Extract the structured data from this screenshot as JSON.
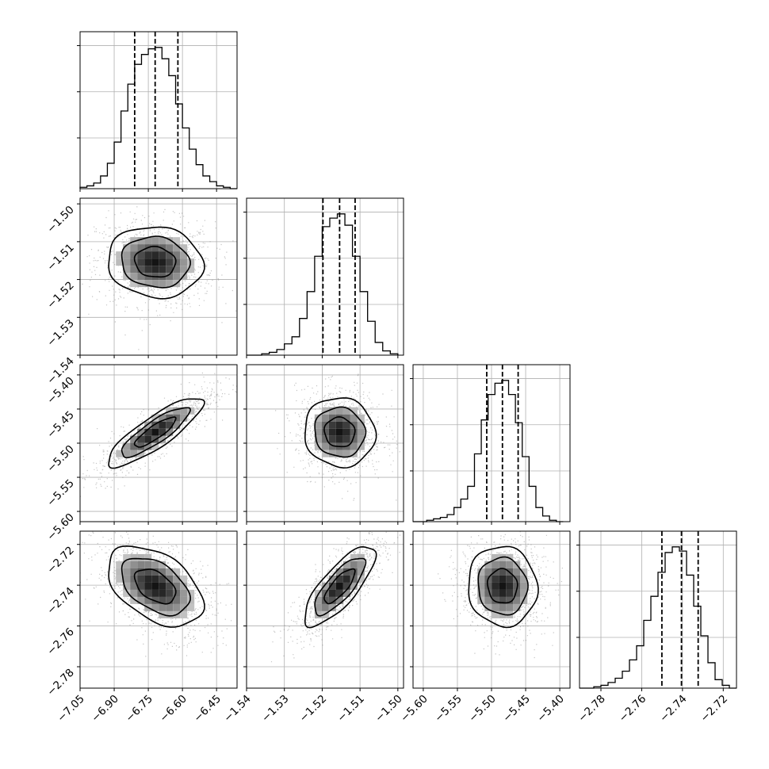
{
  "chart_data": {
    "type": "corner",
    "colors": {
      "frame": "#000000",
      "grid": "#b0b0b0",
      "hist": "#000000",
      "scatter": "#7f7f7f",
      "quantile_line": "#000000"
    },
    "grid": true,
    "parameters": [
      {
        "ticks": [
          "−7.05",
          "−6.90",
          "−6.75",
          "−6.60",
          "−6.45"
        ],
        "tick_values": [
          -7.05,
          -6.9,
          -6.75,
          -6.6,
          -6.45
        ],
        "range": [
          -7.05,
          -6.36
        ],
        "quantiles": [
          -6.81,
          -6.72,
          -6.62
        ],
        "hist_bins": [
          -7.05,
          -7.02,
          -6.99,
          -6.96,
          -6.93,
          -6.9,
          -6.87,
          -6.84,
          -6.81,
          -6.78,
          -6.75,
          -6.72,
          -6.69,
          -6.66,
          -6.63,
          -6.6,
          -6.57,
          -6.54,
          -6.51,
          -6.48,
          -6.45,
          -6.42,
          -6.39,
          -6.36
        ],
        "hist_counts": [
          1,
          2,
          4,
          9,
          18,
          33,
          55,
          74,
          88,
          95,
          99,
          100,
          92,
          80,
          60,
          43,
          28,
          17,
          9,
          5,
          2,
          1,
          0
        ]
      },
      {
        "ticks": [
          "−1.54",
          "−1.53",
          "−1.52",
          "−1.51",
          "−1.50"
        ],
        "tick_values": [
          -1.54,
          -1.53,
          -1.52,
          -1.51,
          -1.5
        ],
        "range": [
          -1.54,
          -1.4985
        ],
        "quantiles": [
          -1.5198,
          -1.5154,
          -1.5113
        ],
        "hist_bins": [
          -1.54,
          -1.538,
          -1.536,
          -1.534,
          -1.532,
          -1.53,
          -1.528,
          -1.526,
          -1.524,
          -1.522,
          -1.52,
          -1.518,
          -1.516,
          -1.514,
          -1.512,
          -1.51,
          -1.508,
          -1.506,
          -1.504,
          -1.502,
          -1.5
        ],
        "hist_counts": [
          0,
          0,
          1,
          2,
          4,
          8,
          13,
          26,
          45,
          70,
          91,
          97,
          100,
          92,
          70,
          45,
          24,
          9,
          3,
          1
        ]
      },
      {
        "ticks": [
          "−5.60",
          "−5.55",
          "−5.50",
          "−5.45",
          "−5.40"
        ],
        "tick_values": [
          -5.6,
          -5.55,
          -5.5,
          -5.45,
          -5.4
        ],
        "range": [
          -5.615,
          -5.385
        ],
        "quantiles": [
          -5.507,
          -5.484,
          -5.461
        ],
        "hist_bins": [
          -5.615,
          -5.605,
          -5.595,
          -5.585,
          -5.575,
          -5.565,
          -5.555,
          -5.545,
          -5.535,
          -5.525,
          -5.515,
          -5.505,
          -5.495,
          -5.485,
          -5.475,
          -5.465,
          -5.455,
          -5.445,
          -5.435,
          -5.425,
          -5.415,
          -5.405,
          -5.395
        ],
        "hist_counts": [
          0,
          0,
          1,
          2,
          3,
          5,
          10,
          16,
          25,
          48,
          72,
          90,
          98,
          100,
          90,
          70,
          46,
          25,
          10,
          4,
          1,
          0
        ]
      },
      {
        "ticks": [
          "−2.78",
          "−2.76",
          "−2.74",
          "−2.72"
        ],
        "tick_values": [
          -2.78,
          -2.76,
          -2.74,
          -2.72
        ],
        "range": [
          -2.7905,
          -2.7135
        ],
        "quantiles": [
          -2.7501,
          -2.7405,
          -2.7323
        ],
        "hist_bins": [
          -2.7905,
          -2.787,
          -2.7835,
          -2.78,
          -2.7765,
          -2.773,
          -2.7695,
          -2.766,
          -2.7625,
          -2.759,
          -2.7555,
          -2.752,
          -2.7485,
          -2.745,
          -2.7415,
          -2.738,
          -2.7345,
          -2.731,
          -2.7275,
          -2.724,
          -2.7205,
          -2.717,
          -2.7135
        ],
        "hist_counts": [
          0,
          0,
          1,
          2,
          4,
          7,
          12,
          20,
          30,
          48,
          65,
          82,
          96,
          100,
          97,
          80,
          58,
          37,
          18,
          6,
          2,
          0
        ]
      }
    ],
    "covariances": [
      {
        "i": 1,
        "j": 0,
        "corr": -0.08
      },
      {
        "i": 2,
        "j": 0,
        "corr": 0.85
      },
      {
        "i": 2,
        "j": 1,
        "corr": -0.05
      },
      {
        "i": 3,
        "j": 0,
        "corr": -0.45
      },
      {
        "i": 3,
        "j": 1,
        "corr": 0.78
      },
      {
        "i": 3,
        "j": 2,
        "corr": -0.05
      }
    ]
  }
}
